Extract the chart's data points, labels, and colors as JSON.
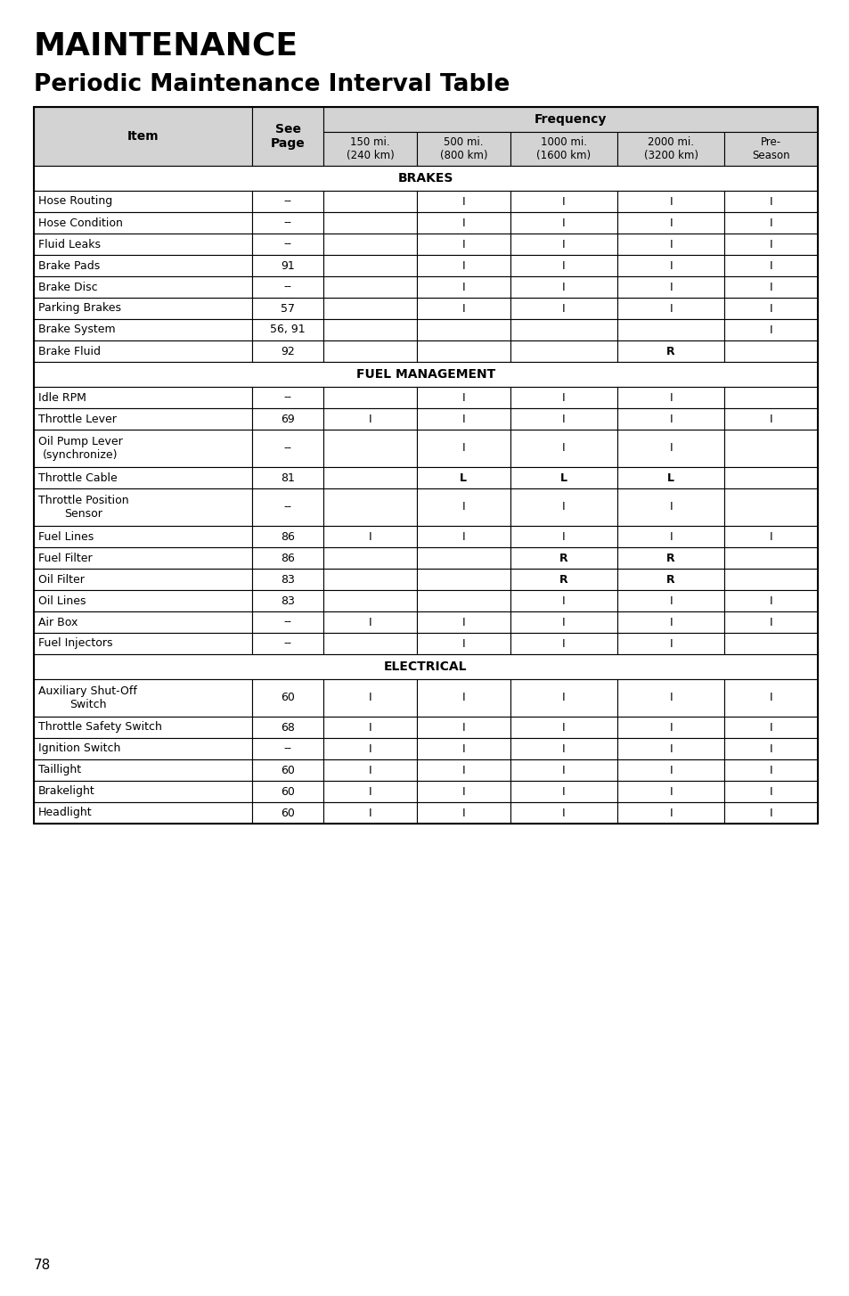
{
  "title1": "MAINTENANCE",
  "title2": "Periodic Maintenance Interval Table",
  "page_number": "78",
  "header_bg": "#d3d3d3",
  "white_bg": "#ffffff",
  "sections": [
    {
      "name": "BRAKES",
      "rows": [
        {
          "item": "Hose Routing",
          "page": "--",
          "c1": "",
          "c2": "I",
          "c3": "I",
          "c4": "I",
          "c5": "I"
        },
        {
          "item": "Hose Condition",
          "page": "--",
          "c1": "",
          "c2": "I",
          "c3": "I",
          "c4": "I",
          "c5": "I"
        },
        {
          "item": "Fluid Leaks",
          "page": "--",
          "c1": "",
          "c2": "I",
          "c3": "I",
          "c4": "I",
          "c5": "I"
        },
        {
          "item": "Brake Pads",
          "page": "91",
          "c1": "",
          "c2": "I",
          "c3": "I",
          "c4": "I",
          "c5": "I"
        },
        {
          "item": "Brake Disc",
          "page": "--",
          "c1": "",
          "c2": "I",
          "c3": "I",
          "c4": "I",
          "c5": "I"
        },
        {
          "item": "Parking Brakes",
          "page": "57",
          "c1": "",
          "c2": "I",
          "c3": "I",
          "c4": "I",
          "c5": "I"
        },
        {
          "item": "Brake System",
          "page": "56, 91",
          "c1": "",
          "c2": "",
          "c3": "",
          "c4": "",
          "c5": "I"
        },
        {
          "item": "Brake Fluid",
          "page": "92",
          "c1": "",
          "c2": "",
          "c3": "",
          "c4": "R",
          "c5": ""
        }
      ]
    },
    {
      "name": "FUEL MANAGEMENT",
      "rows": [
        {
          "item": "Idle RPM",
          "page": "--",
          "c1": "",
          "c2": "I",
          "c3": "I",
          "c4": "I",
          "c5": ""
        },
        {
          "item": "Throttle Lever",
          "page": "69",
          "c1": "I",
          "c2": "I",
          "c3": "I",
          "c4": "I",
          "c5": "I"
        },
        {
          "item": "Oil Pump Lever\n(synchronize)",
          "page": "--",
          "c1": "",
          "c2": "I",
          "c3": "I",
          "c4": "I",
          "c5": ""
        },
        {
          "item": "Throttle Cable",
          "page": "81",
          "c1": "",
          "c2": "L",
          "c3": "L",
          "c4": "L",
          "c5": ""
        },
        {
          "item": "Throttle Position\nSensor",
          "page": "--",
          "c1": "",
          "c2": "I",
          "c3": "I",
          "c4": "I",
          "c5": ""
        },
        {
          "item": "Fuel Lines",
          "page": "86",
          "c1": "I",
          "c2": "I",
          "c3": "I",
          "c4": "I",
          "c5": "I"
        },
        {
          "item": "Fuel Filter",
          "page": "86",
          "c1": "",
          "c2": "",
          "c3": "R",
          "c4": "R",
          "c5": ""
        },
        {
          "item": "Oil Filter",
          "page": "83",
          "c1": "",
          "c2": "",
          "c3": "R",
          "c4": "R",
          "c5": ""
        },
        {
          "item": "Oil Lines",
          "page": "83",
          "c1": "",
          "c2": "",
          "c3": "I",
          "c4": "I",
          "c5": "I"
        },
        {
          "item": "Air Box",
          "page": "--",
          "c1": "I",
          "c2": "I",
          "c3": "I",
          "c4": "I",
          "c5": "I"
        },
        {
          "item": "Fuel Injectors",
          "page": "--",
          "c1": "",
          "c2": "I",
          "c3": "I",
          "c4": "I",
          "c5": ""
        }
      ]
    },
    {
      "name": "ELECTRICAL",
      "rows": [
        {
          "item": "Auxiliary Shut-Off\nSwitch",
          "page": "60",
          "c1": "I",
          "c2": "I",
          "c3": "I",
          "c4": "I",
          "c5": "I"
        },
        {
          "item": "Throttle Safety Switch",
          "page": "68",
          "c1": "I",
          "c2": "I",
          "c3": "I",
          "c4": "I",
          "c5": "I"
        },
        {
          "item": "Ignition Switch",
          "page": "--",
          "c1": "I",
          "c2": "I",
          "c3": "I",
          "c4": "I",
          "c5": "I"
        },
        {
          "item": "Taillight",
          "page": "60",
          "c1": "I",
          "c2": "I",
          "c3": "I",
          "c4": "I",
          "c5": "I"
        },
        {
          "item": "Brakelight",
          "page": "60",
          "c1": "I",
          "c2": "I",
          "c3": "I",
          "c4": "I",
          "c5": "I"
        },
        {
          "item": "Headlight",
          "page": "60",
          "c1": "I",
          "c2": "I",
          "c3": "I",
          "c4": "I",
          "c5": "I"
        }
      ]
    }
  ]
}
